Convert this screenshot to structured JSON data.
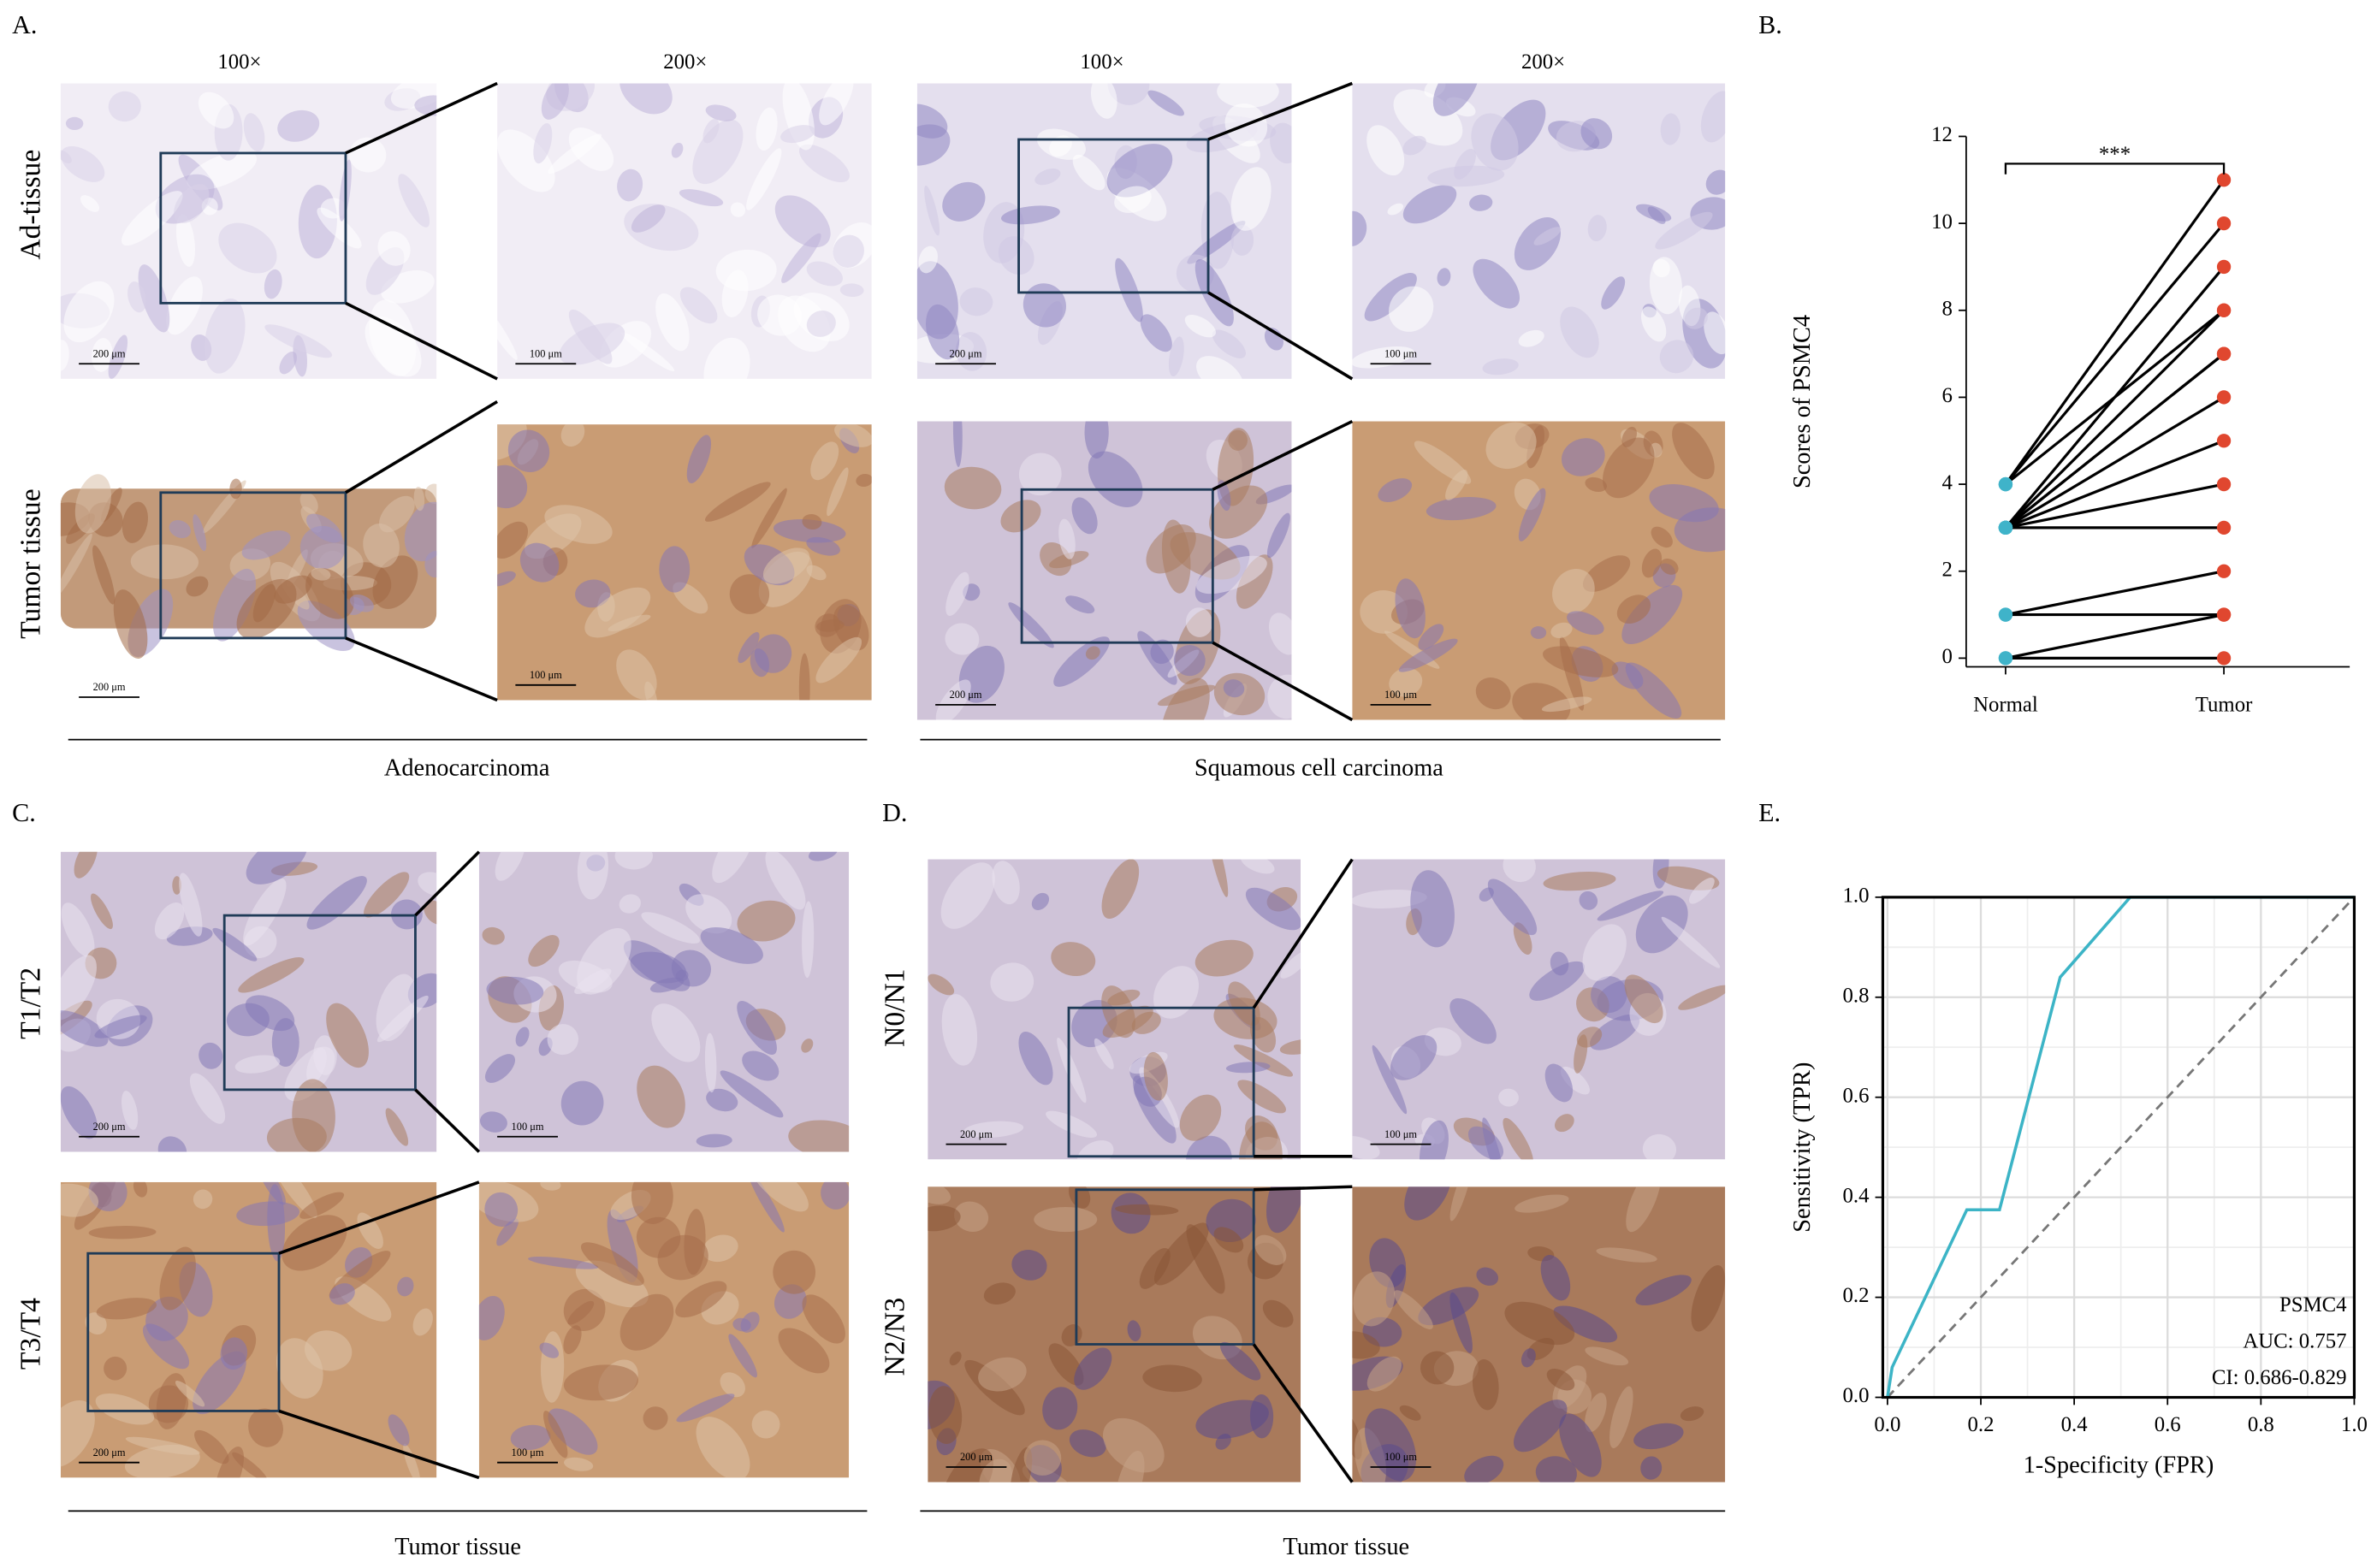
{
  "panels": {
    "A": {
      "label": "A.",
      "magnifications": [
        "100×",
        "200×"
      ],
      "rows": [
        "Ad-tissue",
        "Tumor tissue"
      ],
      "groups": [
        "Adenocarcinoma",
        "Squamous cell carcinoma"
      ]
    },
    "B": {
      "label": "B."
    },
    "C": {
      "label": "C.",
      "rows": [
        "T1/T2",
        "T3/T4"
      ],
      "group": "Tumor tissue"
    },
    "D": {
      "label": "D.",
      "rows": [
        "N0/N1",
        "N2/N3"
      ],
      "group": "Tumor tissue"
    },
    "E": {
      "label": "E."
    },
    "scale_bars": [
      "200 μm",
      "100 μm"
    ]
  },
  "chart_data": [
    {
      "type": "paired",
      "y_label": "Scores of PSMC4",
      "annotation": "***",
      "line_color": "#000000",
      "series": [
        {
          "name": "Normal",
          "color": "#3fb3c9",
          "values": [
            4,
            4,
            4,
            3,
            3,
            3,
            3,
            3,
            3,
            3,
            3,
            1,
            1,
            0,
            0
          ]
        },
        {
          "name": "Tumor",
          "color": "#e0472f",
          "values": [
            11,
            10,
            8,
            9,
            8,
            7,
            7,
            6,
            5,
            4,
            3,
            2,
            1,
            1,
            0
          ]
        }
      ],
      "ylim": [
        -0.2,
        12
      ],
      "yticks": [
        0,
        2,
        4,
        6,
        8,
        10,
        12
      ]
    },
    {
      "type": "line",
      "x_label": "1-Specificity (FPR)",
      "y_label": "Sensitivity (TPR)",
      "series": [
        {
          "name": "PSMC4",
          "color": "#3cb4c6",
          "x": [
            0,
            0.01,
            0.17,
            0.24,
            0.37,
            0.52,
            1.0
          ],
          "values": [
            0,
            0.06,
            0.375,
            0.375,
            0.84,
            1.0,
            1.0
          ]
        }
      ],
      "annotations": [
        "AUC: 0.757",
        "CI: 0.686-0.829"
      ],
      "xlim": [
        -0.01,
        1.0
      ],
      "ylim": [
        0,
        1.0
      ],
      "xticks": [
        {
          "value": 0,
          "label": "0.0"
        },
        0.2,
        0.4,
        0.6,
        0.8,
        {
          "value": 1,
          "label": "1.0"
        }
      ],
      "yticks": [
        {
          "value": 0,
          "label": "0.0"
        },
        0.2,
        0.4,
        0.6,
        0.8,
        {
          "value": 1,
          "label": "1.0"
        }
      ],
      "grid": true,
      "minor_grid": true,
      "reference_line": true
    }
  ]
}
